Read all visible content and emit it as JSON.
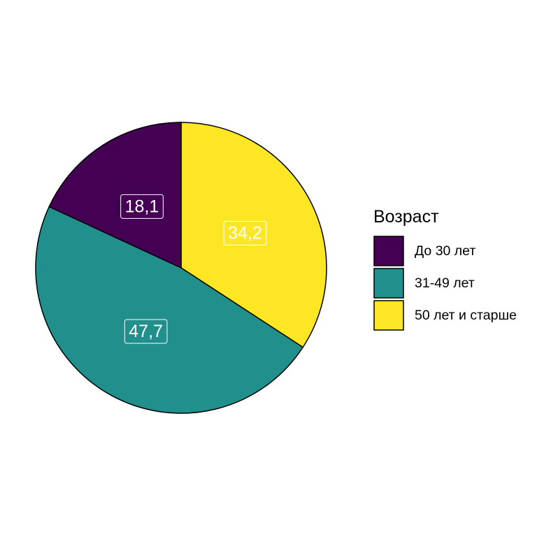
{
  "chart_data": {
    "type": "pie",
    "start_angle_deg": 0,
    "direction": "clockwise",
    "slices": [
      {
        "label": "50 лет и старше",
        "value": 34.2,
        "display": "34,2",
        "color": "#FDE725"
      },
      {
        "label": "31-49 лет",
        "value": 47.7,
        "display": "47,7",
        "color": "#21908C"
      },
      {
        "label": "До 30 лет",
        "value": 18.1,
        "display": "18,1",
        "color": "#440154"
      }
    ],
    "legend": {
      "title": "Возраст",
      "position": "right",
      "order": [
        "До 30 лет",
        "31-49 лет",
        "50 лет и старше"
      ]
    }
  }
}
